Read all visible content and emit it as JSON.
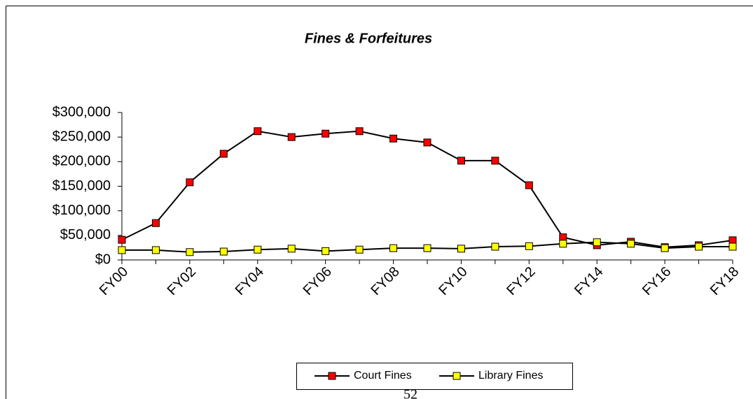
{
  "chart_data": {
    "type": "line",
    "title": "Fines & Forfeitures",
    "categories": [
      "FY00",
      null,
      "FY02",
      null,
      "FY04",
      null,
      "FY06",
      null,
      "FY08",
      null,
      "FY10",
      null,
      "FY12",
      null,
      "FY14",
      null,
      "FY16",
      null,
      "FY18"
    ],
    "series": [
      {
        "name": "Court Fines",
        "color": "#ff0000",
        "values": [
          41000,
          75000,
          158000,
          216000,
          262000,
          250000,
          257000,
          262000,
          247000,
          239000,
          202000,
          202000,
          152000,
          46000,
          30000,
          37000,
          26000,
          30000,
          40000
        ]
      },
      {
        "name": "Library Fines",
        "color": "#ffff00",
        "values": [
          20000,
          20000,
          16000,
          17000,
          21000,
          23000,
          18000,
          21000,
          24000,
          24000,
          23000,
          27000,
          28000,
          33000,
          36000,
          33000,
          24000,
          27000,
          27000
        ]
      }
    ],
    "line_color": "#000000",
    "ylim": [
      0,
      300000
    ],
    "yticks": [
      {
        "value": 0,
        "label": "$0"
      },
      {
        "value": 50000,
        "label": "$50,000"
      },
      {
        "value": 100000,
        "label": "$100,000"
      },
      {
        "value": 150000,
        "label": "$150,000"
      },
      {
        "value": 200000,
        "label": "$200,000"
      },
      {
        "value": 250000,
        "label": "$250,000"
      },
      {
        "value": 300000,
        "label": "$300,000"
      }
    ],
    "grid": false,
    "legend": "bottom"
  },
  "page_number": "52"
}
